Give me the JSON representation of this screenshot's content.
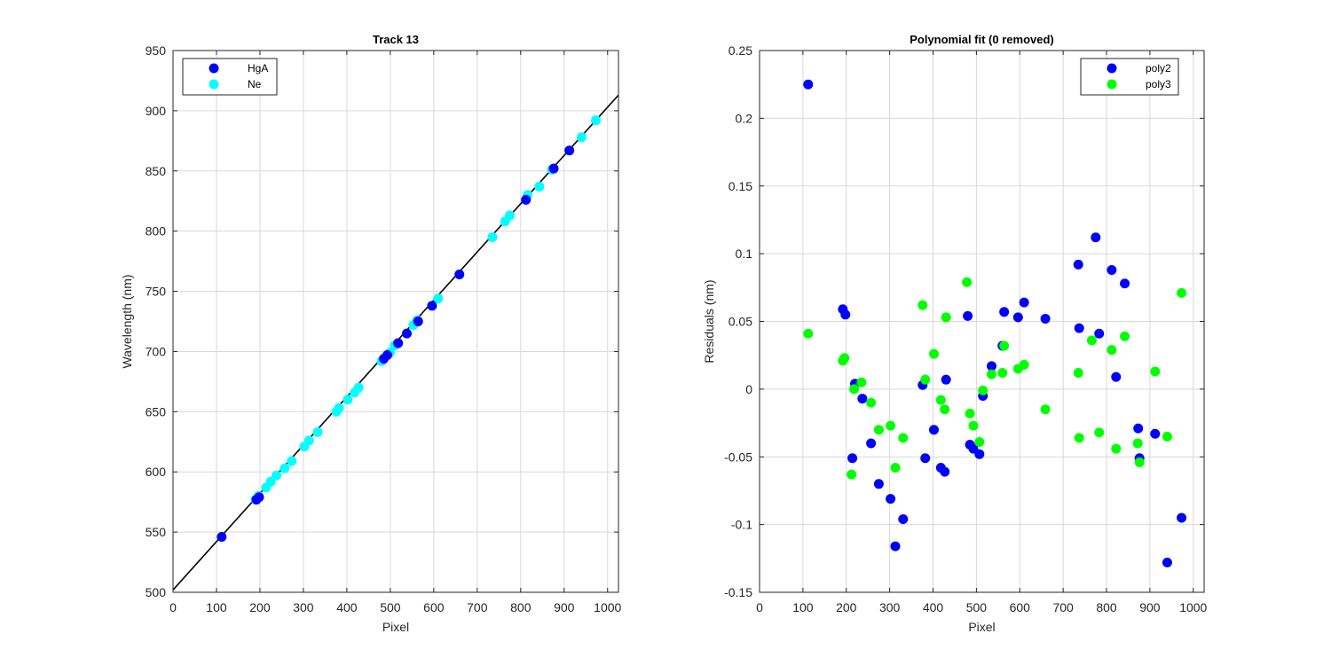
{
  "chart_data": [
    {
      "type": "scatter",
      "title": "Track 13",
      "xlabel": "Pixel",
      "ylabel": "Wavelength (nm)",
      "xlim": [
        0,
        1025
      ],
      "ylim": [
        500,
        950
      ],
      "xticks": [
        0,
        100,
        200,
        300,
        400,
        500,
        600,
        700,
        800,
        900,
        1000
      ],
      "yticks": [
        500,
        550,
        600,
        650,
        700,
        750,
        800,
        850,
        900,
        950
      ],
      "xtick_labels": [
        "0",
        "100",
        "200",
        "300",
        "400",
        "500",
        "600",
        "700",
        "800",
        "900",
        "1000"
      ],
      "ytick_labels": [
        "500",
        "550",
        "600",
        "650",
        "700",
        "750",
        "800",
        "850",
        "900",
        "950"
      ],
      "grid": true,
      "legend_position": "top-left",
      "fit_line": {
        "x": [
          0,
          1025
        ],
        "y": [
          502,
          913
        ],
        "color": "#000000"
      },
      "series": [
        {
          "name": "Ne",
          "color": "#00ffff",
          "x": [
            190,
            197,
            214,
            225,
            238,
            257,
            273,
            302,
            313,
            333,
            376,
            382,
            402,
            418,
            427,
            480,
            499,
            510,
            553,
            562,
            610,
            735,
            764,
            775,
            816,
            843,
            872,
            940,
            973
          ],
          "y": [
            577,
            580,
            587,
            592,
            597,
            603,
            609,
            621,
            626,
            633,
            650,
            653,
            660,
            666,
            670,
            692,
            699,
            705,
            722,
            726,
            744,
            795,
            808,
            813,
            830,
            837,
            851,
            878,
            892
          ]
        },
        {
          "name": "HgA",
          "color": "#0000ff",
          "x": [
            112,
            192,
            198,
            485,
            493,
            518,
            538,
            564,
            596,
            659,
            812,
            876,
            912
          ],
          "y": [
            546,
            577,
            579,
            694,
            697,
            707,
            715,
            725,
            738,
            764,
            826,
            852,
            867
          ]
        }
      ],
      "legend": [
        "HgA",
        "Ne"
      ]
    },
    {
      "type": "scatter",
      "title": "Polynomial fit  (0 removed)",
      "xlabel": "Pixel",
      "ylabel": "Residuals (nm)",
      "xlim": [
        0,
        1025
      ],
      "ylim": [
        -0.15,
        0.25
      ],
      "xticks": [
        0,
        100,
        200,
        300,
        400,
        500,
        600,
        700,
        800,
        900,
        1000
      ],
      "yticks": [
        -0.15,
        -0.1,
        -0.05,
        0,
        0.05,
        0.1,
        0.15,
        0.2,
        0.25
      ],
      "xtick_labels": [
        "0",
        "100",
        "200",
        "300",
        "400",
        "500",
        "600",
        "700",
        "800",
        "900",
        "1000"
      ],
      "ytick_labels": [
        "-0.15",
        "-0.1",
        "-0.05",
        "0",
        "0.05",
        "0.1",
        "0.15",
        "0.2",
        "0.25"
      ],
      "grid": true,
      "legend_position": "top-right",
      "series": [
        {
          "name": "poly2",
          "color": "#0000ff",
          "x": [
            112,
            192,
            198,
            214,
            220,
            237,
            257,
            275,
            302,
            313,
            331,
            376,
            382,
            402,
            418,
            427,
            430,
            480,
            485,
            493,
            507,
            515,
            535,
            560,
            564,
            596,
            610,
            659,
            735,
            737,
            775,
            783,
            812,
            822,
            842,
            873,
            876,
            912,
            940,
            973
          ],
          "y": [
            0.225,
            0.059,
            0.055,
            -0.051,
            0.004,
            -0.007,
            -0.04,
            -0.07,
            -0.081,
            -0.116,
            -0.096,
            0.003,
            -0.051,
            -0.03,
            -0.058,
            -0.061,
            0.007,
            0.054,
            -0.041,
            -0.044,
            -0.048,
            -0.005,
            0.017,
            0.032,
            0.057,
            0.053,
            0.064,
            0.052,
            0.092,
            0.045,
            0.112,
            0.041,
            0.088,
            0.009,
            0.078,
            -0.029,
            -0.051,
            -0.033,
            -0.128,
            -0.095
          ]
        },
        {
          "name": "poly3",
          "color": "#00ff00",
          "x": [
            112,
            192,
            196,
            212,
            218,
            235,
            257,
            275,
            302,
            313,
            331,
            376,
            382,
            402,
            418,
            427,
            430,
            478,
            485,
            493,
            507,
            515,
            535,
            560,
            564,
            596,
            610,
            659,
            735,
            737,
            766,
            783,
            812,
            822,
            842,
            872,
            876,
            912,
            940,
            973
          ],
          "y": [
            0.041,
            0.021,
            0.023,
            -0.063,
            0.0,
            0.005,
            -0.01,
            -0.03,
            -0.027,
            -0.058,
            -0.036,
            0.062,
            0.007,
            0.026,
            -0.008,
            -0.015,
            0.053,
            0.079,
            -0.018,
            -0.027,
            -0.039,
            -0.001,
            0.011,
            0.012,
            0.032,
            0.015,
            0.018,
            -0.015,
            0.012,
            -0.036,
            0.036,
            -0.032,
            0.029,
            -0.044,
            0.039,
            -0.04,
            -0.054,
            0.013,
            -0.035,
            0.071
          ]
        }
      ],
      "legend": [
        "poly2",
        "poly3"
      ]
    }
  ]
}
